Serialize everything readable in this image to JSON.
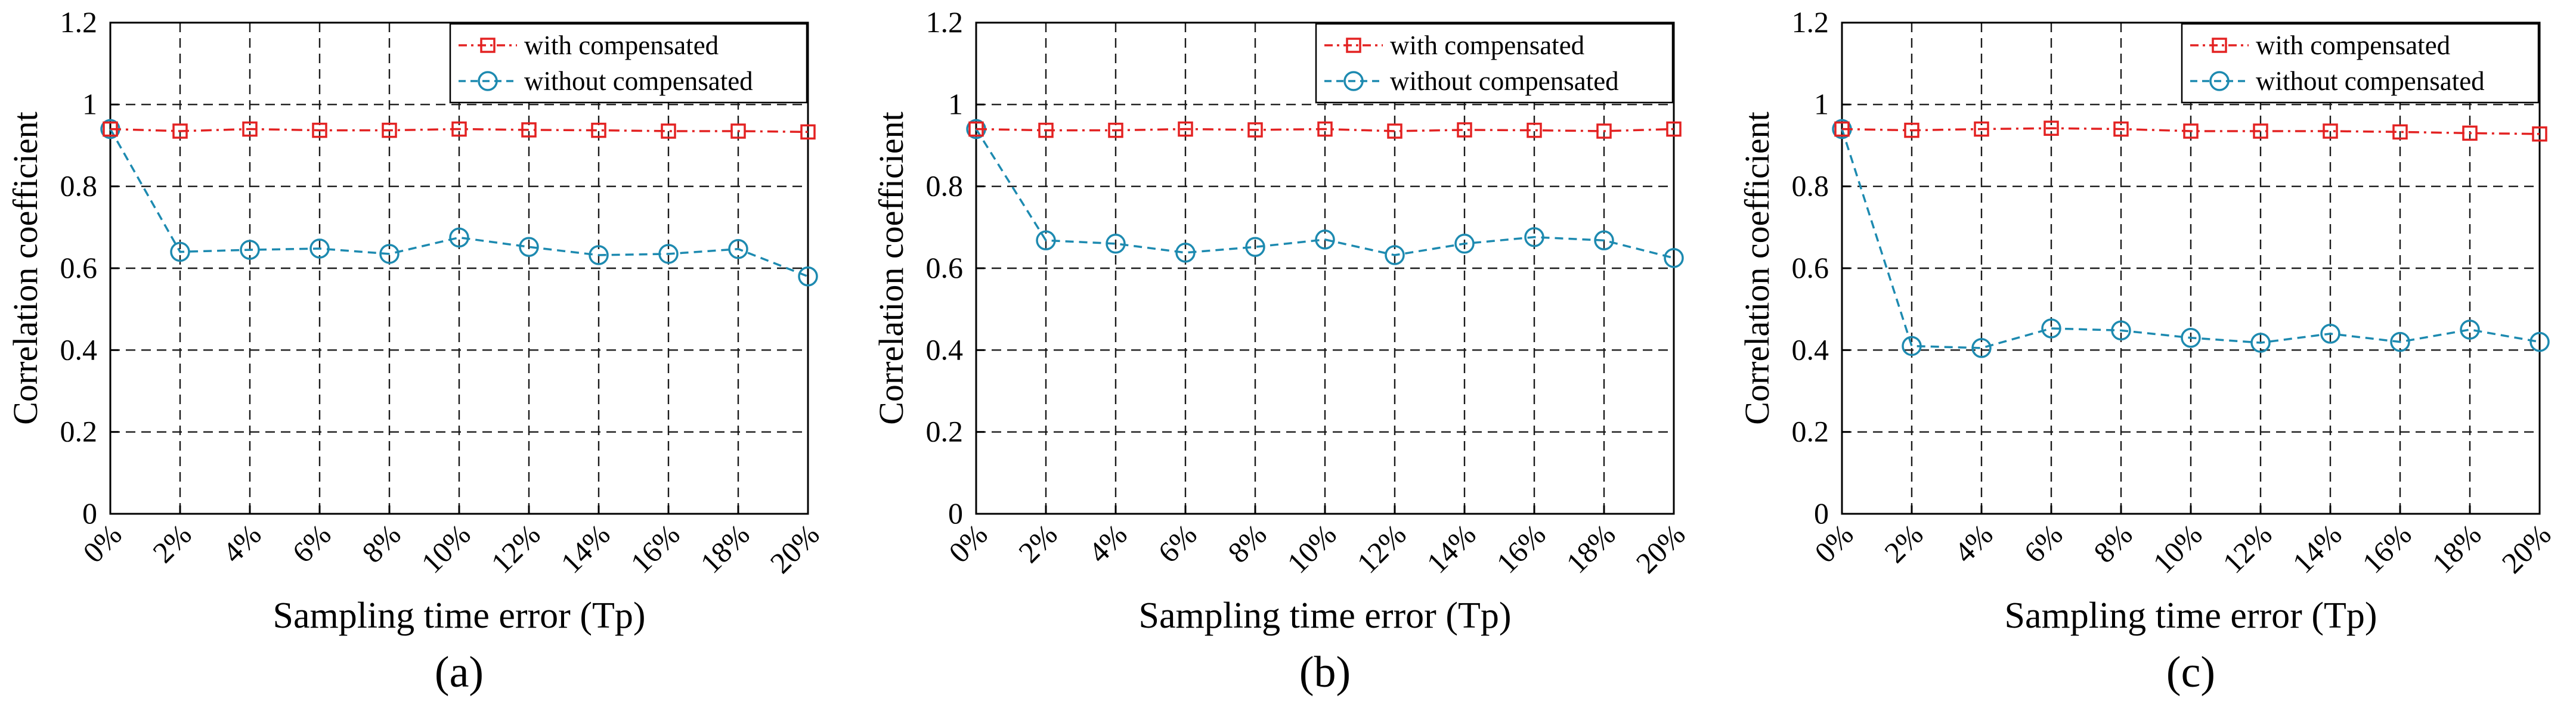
{
  "figure": {
    "panels": [
      "(a)",
      "(b)",
      "(c)"
    ]
  },
  "colors": {
    "with": "#e32222",
    "without": "#1d8ab0",
    "grid": "#1a1a1a",
    "axis": "#000000"
  },
  "chart_data": [
    {
      "type": "line",
      "panel": "(a)",
      "xlabel": "Sampling time error (Tp)",
      "ylabel": "Correlation coefficient",
      "categories": [
        "0%",
        "2%",
        "4%",
        "6%",
        "8%",
        "10%",
        "12%",
        "14%",
        "16%",
        "18%",
        "20%"
      ],
      "ylim": [
        0,
        1.2
      ],
      "yticks": [
        "0",
        "0.2",
        "0.4",
        "0.6",
        "0.8",
        "1",
        "1.2"
      ],
      "grid": true,
      "legend": "top-right",
      "series": [
        {
          "name": "with compensated",
          "marker": "square",
          "values": [
            0.94,
            0.935,
            0.94,
            0.937,
            0.937,
            0.94,
            0.938,
            0.937,
            0.935,
            0.935,
            0.933
          ]
        },
        {
          "name": "without compensated",
          "marker": "circle",
          "values": [
            0.94,
            0.64,
            0.645,
            0.648,
            0.635,
            0.675,
            0.652,
            0.632,
            0.635,
            0.647,
            0.58
          ]
        }
      ]
    },
    {
      "type": "line",
      "panel": "(b)",
      "xlabel": "Sampling time error (Tp)",
      "ylabel": "Correlation coefficient",
      "categories": [
        "0%",
        "2%",
        "4%",
        "6%",
        "8%",
        "10%",
        "12%",
        "14%",
        "16%",
        "18%",
        "20%"
      ],
      "ylim": [
        0,
        1.2
      ],
      "yticks": [
        "0",
        "0.2",
        "0.4",
        "0.6",
        "0.8",
        "1",
        "1.2"
      ],
      "grid": true,
      "legend": "top-right",
      "series": [
        {
          "name": "with compensated",
          "marker": "square",
          "values": [
            0.94,
            0.937,
            0.937,
            0.94,
            0.938,
            0.94,
            0.935,
            0.938,
            0.937,
            0.935,
            0.94
          ]
        },
        {
          "name": "without compensated",
          "marker": "circle",
          "values": [
            0.94,
            0.668,
            0.66,
            0.638,
            0.652,
            0.67,
            0.632,
            0.66,
            0.676,
            0.668,
            0.625
          ]
        }
      ]
    },
    {
      "type": "line",
      "panel": "(c)",
      "xlabel": "Sampling time error (Tp)",
      "ylabel": "Correlation coefficient",
      "categories": [
        "0%",
        "2%",
        "4%",
        "6%",
        "8%",
        "10%",
        "12%",
        "14%",
        "16%",
        "18%",
        "20%"
      ],
      "ylim": [
        0,
        1.2
      ],
      "yticks": [
        "0",
        "0.2",
        "0.4",
        "0.6",
        "0.8",
        "1",
        "1.2"
      ],
      "grid": true,
      "legend": "top-right",
      "series": [
        {
          "name": "with compensated",
          "marker": "square",
          "values": [
            0.94,
            0.937,
            0.94,
            0.942,
            0.94,
            0.935,
            0.935,
            0.935,
            0.933,
            0.93,
            0.928
          ]
        },
        {
          "name": "without compensated",
          "marker": "circle",
          "values": [
            0.94,
            0.41,
            0.405,
            0.453,
            0.448,
            0.43,
            0.418,
            0.44,
            0.42,
            0.45,
            0.42
          ]
        }
      ]
    }
  ]
}
